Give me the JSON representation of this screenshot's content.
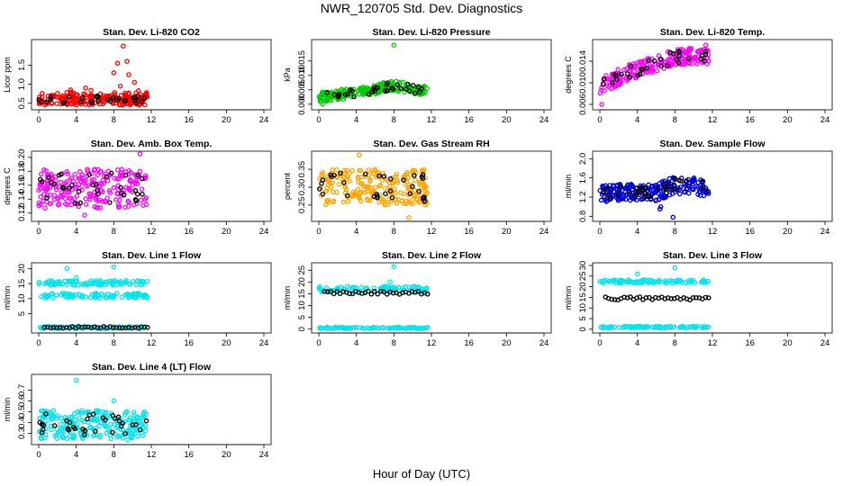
{
  "figure": {
    "title": "NWR_120705  Std. Dev. Diagnostics",
    "xlabel": "Hour of Day (UTC)"
  },
  "chart_data": [
    {
      "type": "scatter",
      "title": "Stan. Dev. Li-820 CO2",
      "ylabel": "Licor ppm",
      "xlim": [
        0,
        24
      ],
      "xticks": [
        0,
        4,
        8,
        12,
        16,
        20,
        24
      ],
      "ylim": [
        0.4,
        2.1
      ],
      "yticks": [
        0.5,
        1.0,
        1.5
      ],
      "ytick_labels": [
        "0.5",
        "1.0",
        "1.5"
      ],
      "color": "#ff0000",
      "y_main": [
        0.45,
        0.85
      ],
      "y_dark": [
        0.5,
        0.7
      ],
      "outliers": [
        [
          8.0,
          1.3
        ],
        [
          8.4,
          1.55
        ],
        [
          9.0,
          2.0
        ],
        [
          9.4,
          1.6
        ],
        [
          9.6,
          1.25
        ],
        [
          8.7,
          0.95
        ],
        [
          10.2,
          1.05
        ],
        [
          3.4,
          0.85
        ],
        [
          5.0,
          0.9
        ]
      ]
    },
    {
      "type": "scatter",
      "title": "Stan. Dev. Li-820 Pressure",
      "ylabel": "kPa",
      "xlim": [
        0,
        24
      ],
      "xticks": [
        0,
        4,
        8,
        12,
        16,
        20,
        24
      ],
      "ylim": [
        -0.001,
        0.0215
      ],
      "yticks": [
        0.0,
        0.005,
        0.01,
        0.015
      ],
      "ytick_labels": [
        "0.000",
        "0.005",
        "0.010",
        "0.015"
      ],
      "color": "#00cc00",
      "trend": [
        [
          0,
          0.0025
        ],
        [
          4,
          0.004
        ],
        [
          8,
          0.0065
        ],
        [
          11.5,
          0.0045
        ]
      ],
      "spread": 0.0018,
      "y_dark_offset": 0.0,
      "outliers": [
        [
          8.0,
          0.0205
        ],
        [
          0.4,
          0.0
        ]
      ]
    },
    {
      "type": "scatter",
      "title": "Stan. Dev. Li-820 Temp.",
      "ylabel": "degrees C",
      "xlim": [
        0,
        24
      ],
      "xticks": [
        0,
        4,
        8,
        12,
        16,
        20,
        24
      ],
      "ylim": [
        0.0055,
        0.0175
      ],
      "yticks": [
        0.006,
        0.01,
        0.014
      ],
      "ytick_labels": [
        "0.006",
        "0.010",
        "0.014"
      ],
      "color": "#ff00ff",
      "trend": [
        [
          0,
          0.0095
        ],
        [
          4,
          0.0125
        ],
        [
          8,
          0.0148
        ],
        [
          11.5,
          0.015
        ]
      ],
      "spread": 0.0015,
      "outliers": [
        [
          0.2,
          0.006
        ],
        [
          11.3,
          0.017
        ]
      ]
    },
    {
      "type": "scatter",
      "title": "Stan. Dev. Amb. Box Temp.",
      "ylabel": "degrees C",
      "xlim": [
        0,
        24
      ],
      "xticks": [
        0,
        4,
        8,
        12,
        16,
        20,
        24
      ],
      "ylim": [
        0.112,
        0.205
      ],
      "yticks": [
        0.12,
        0.14,
        0.16,
        0.18,
        0.2
      ],
      "ytick_labels": [
        "0.12",
        "0.14",
        "0.16",
        "0.18",
        "0.20"
      ],
      "color": "#ff00ff",
      "trend": [
        [
          0,
          0.155
        ],
        [
          11.5,
          0.155
        ]
      ],
      "spread": 0.028,
      "outliers": [
        [
          10.8,
          0.205
        ],
        [
          4.9,
          0.117
        ]
      ]
    },
    {
      "type": "scatter",
      "title": "Stan. Dev. Gas Stream RH",
      "ylabel": "percent",
      "xlim": [
        0,
        24
      ],
      "xticks": [
        0,
        4,
        8,
        12,
        16,
        20,
        24
      ],
      "ylim": [
        0.212,
        0.393
      ],
      "yticks": [
        0.25,
        0.3,
        0.35
      ],
      "ytick_labels": [
        "0.25",
        "0.30",
        "0.35"
      ],
      "color": "#ffa500",
      "trend": [
        [
          0,
          0.3
        ],
        [
          11.5,
          0.3
        ]
      ],
      "spread": 0.05,
      "outliers": [
        [
          4.3,
          0.39
        ],
        [
          9.6,
          0.215
        ]
      ]
    },
    {
      "type": "scatter",
      "title": "Stan. Dev. Sample Flow",
      "ylabel": "ml/min",
      "xlim": [
        0,
        24
      ],
      "xticks": [
        0,
        4,
        8,
        12,
        16,
        20,
        24
      ],
      "ylim": [
        0.75,
        2.1
      ],
      "yticks": [
        0.8,
        1.2,
        1.6,
        2.0
      ],
      "ytick_labels": [
        "0.8",
        "1.2",
        "1.6",
        "2.0"
      ],
      "color": "#0000dd",
      "trend": [
        [
          0,
          1.28
        ],
        [
          6,
          1.3
        ],
        [
          8,
          1.45
        ],
        [
          11.5,
          1.4
        ]
      ],
      "spread": 0.18,
      "outliers": [
        [
          6.4,
          0.95
        ],
        [
          7.8,
          0.78
        ],
        [
          6.5,
          1.0
        ]
      ]
    },
    {
      "type": "scatter",
      "title": "Stan. Dev. Line 1 Flow",
      "ylabel": "ml/min",
      "xlim": [
        0,
        24
      ],
      "xticks": [
        0,
        4,
        8,
        12,
        16,
        20,
        24
      ],
      "ylim": [
        -0.5,
        21
      ],
      "yticks": [
        5,
        10,
        15,
        20
      ],
      "ytick_labels": [
        "5",
        "10",
        "15",
        "20"
      ],
      "color": "#00e5ee",
      "bands": [
        [
          15.2,
          0.8
        ],
        [
          11.0,
          0.8
        ],
        [
          0.4,
          0.4
        ]
      ],
      "dark_bands": [
        [
          0.5,
          0.3
        ]
      ],
      "outliers": [
        [
          3.0,
          20.0
        ],
        [
          8.0,
          20.5
        ],
        [
          4.0,
          17.0
        ]
      ]
    },
    {
      "type": "scatter",
      "title": "Stan. Dev. Line 2 Flow",
      "ylabel": "ml/min",
      "xlim": [
        0,
        24
      ],
      "xticks": [
        0,
        4,
        8,
        12,
        16,
        20,
        24
      ],
      "ylim": [
        -0.5,
        27
      ],
      "yticks": [
        0,
        5,
        10,
        15,
        20,
        25
      ],
      "ytick_labels": [
        "0",
        "5",
        "10",
        "15",
        "20",
        "25"
      ],
      "color": "#00e5ee",
      "bands": [
        [
          17.0,
          1.2
        ],
        [
          0.5,
          0.3
        ]
      ],
      "dark_bands": [
        [
          15.5,
          0.7
        ]
      ],
      "outliers": [
        [
          8.0,
          26.5
        ],
        [
          7.6,
          20.0
        ]
      ]
    },
    {
      "type": "scatter",
      "title": "Stan. Dev. Line 3 Flow",
      "ylabel": "ml/min",
      "xlim": [
        0,
        24
      ],
      "xticks": [
        0,
        4,
        8,
        12,
        16,
        20,
        24
      ],
      "ylim": [
        -0.5,
        30
      ],
      "yticks": [
        0,
        5,
        10,
        15,
        20,
        25,
        30
      ],
      "ytick_labels": [
        "0",
        "5",
        "10",
        "15",
        "20",
        "25",
        "30"
      ],
      "color": "#00e5ee",
      "bands": [
        [
          22.5,
          0.8
        ],
        [
          1.0,
          0.4
        ]
      ],
      "dark_bands": [
        [
          14.5,
          0.8
        ]
      ],
      "outliers": [
        [
          4.0,
          26.0
        ],
        [
          8.0,
          29.0
        ]
      ]
    },
    {
      "type": "scatter",
      "title": "Stan. Dev. Line 4 (LT) Flow",
      "ylabel": "ml/min",
      "xlim": [
        0,
        24
      ],
      "xticks": [
        0,
        4,
        8,
        12,
        16,
        20,
        24
      ],
      "ylim": [
        0.22,
        0.82
      ],
      "yticks": [
        0.3,
        0.4,
        0.5,
        0.6,
        0.7
      ],
      "ytick_labels": [
        "0.3",
        "0.4",
        "0.5",
        "0.6",
        "0.7"
      ],
      "color": "#00e5ee",
      "trend": [
        [
          0,
          0.38
        ],
        [
          11.5,
          0.38
        ]
      ],
      "spread": 0.13,
      "outliers": [
        [
          4.0,
          0.79
        ],
        [
          8.0,
          0.6
        ],
        [
          9.5,
          0.24
        ]
      ]
    }
  ]
}
